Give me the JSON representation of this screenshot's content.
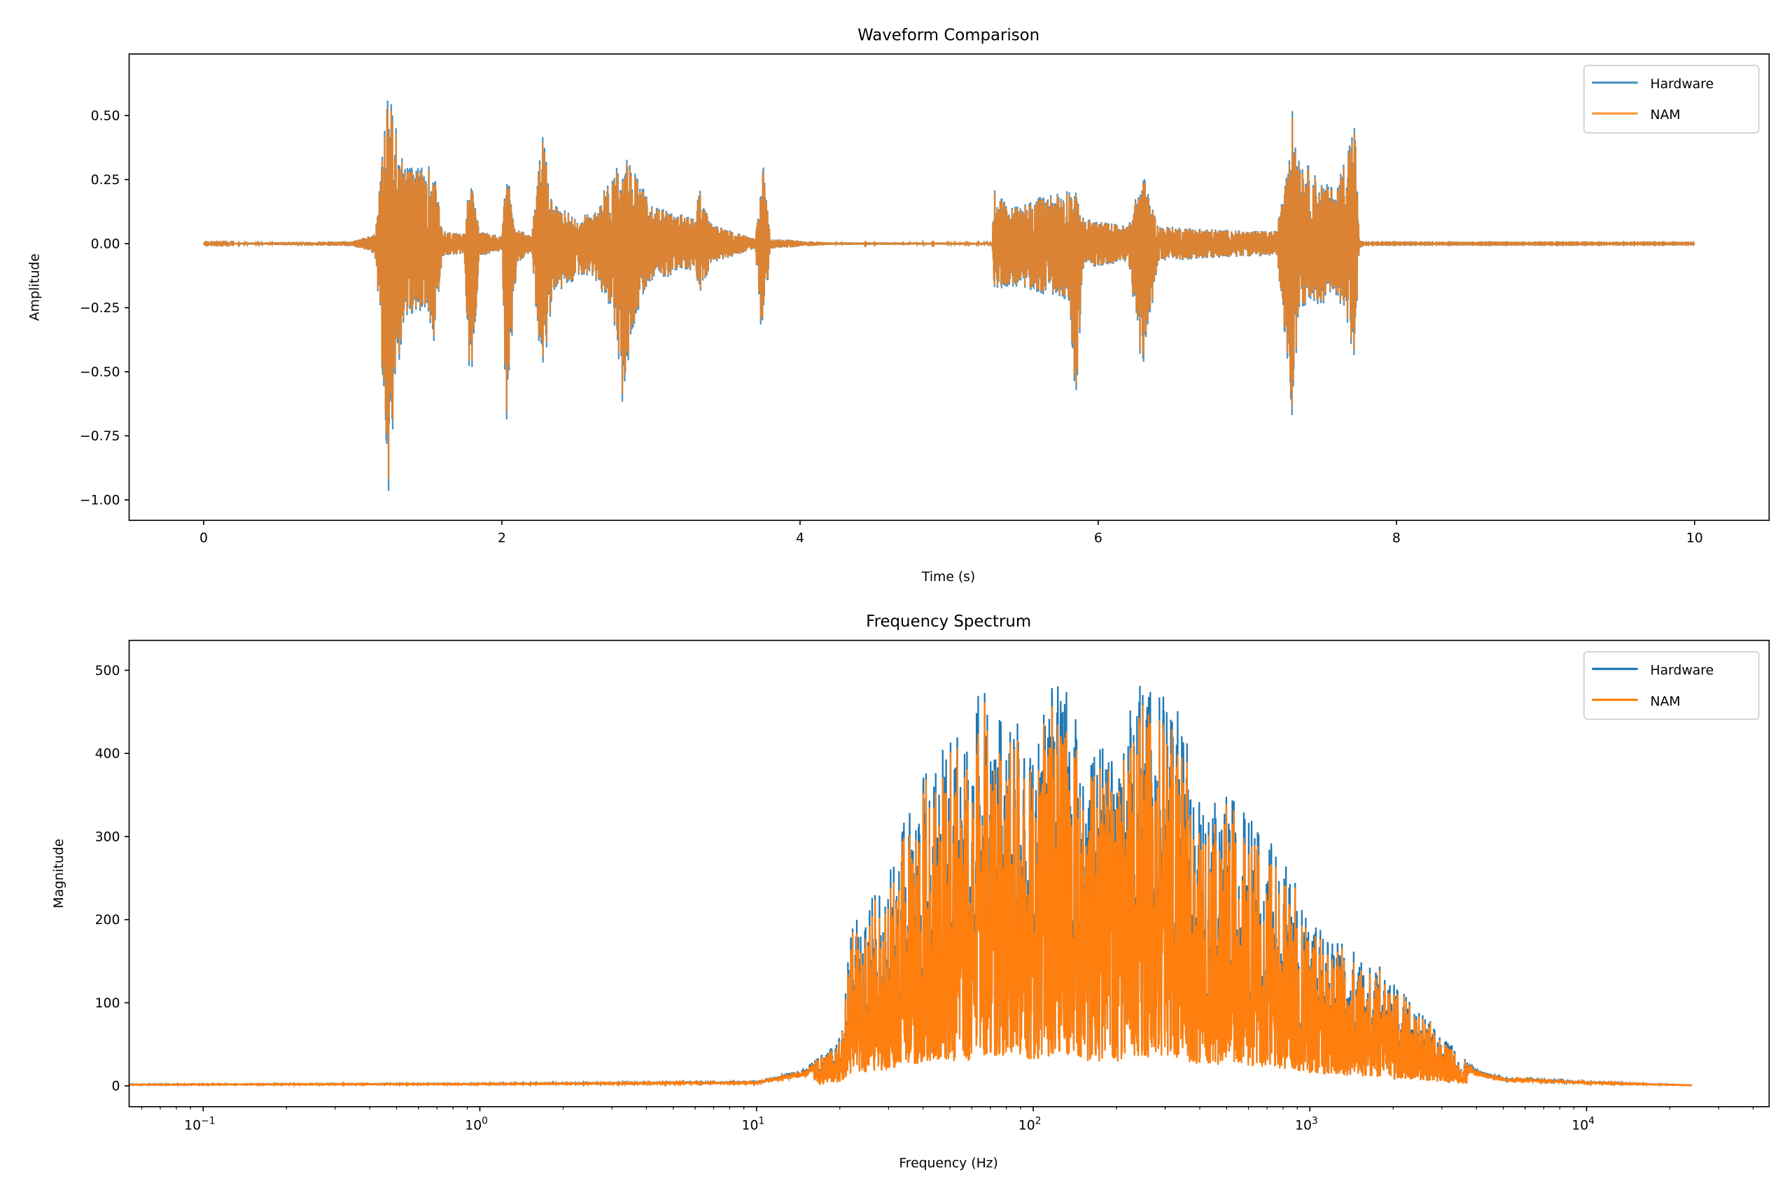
{
  "chart_data": [
    {
      "type": "line",
      "title": "Waveform Comparison",
      "xlabel": "Time (s)",
      "ylabel": "Amplitude",
      "xlim": [
        -0.5,
        10.5
      ],
      "ylim": [
        -1.08,
        0.74
      ],
      "xticks": [
        0,
        2,
        4,
        6,
        8,
        10
      ],
      "xtick_labels": [
        "0",
        "2",
        "4",
        "6",
        "8",
        "10"
      ],
      "yticks": [
        -1.0,
        -0.75,
        -0.5,
        -0.25,
        0.0,
        0.25,
        0.5
      ],
      "ytick_labels": [
        "−1.00",
        "−0.75",
        "−0.50",
        "−0.25",
        "0.00",
        "0.25",
        "0.50"
      ],
      "grid": false,
      "legend_placement": "upper-right",
      "series": [
        {
          "name": "Hardware",
          "color": "#1f77b4",
          "alpha": 0.8
        },
        {
          "name": "NAM",
          "color": "#ff7f0e",
          "alpha": 0.8
        }
      ],
      "envelope_time_max_min": [
        [
          0,
          0.002,
          -0.002
        ],
        [
          1.0,
          0.01,
          -0.01
        ],
        [
          1.15,
          0.04,
          -0.04
        ],
        [
          1.21,
          0.42,
          -0.68
        ],
        [
          1.24,
          0.65,
          -1.0
        ],
        [
          1.28,
          0.48,
          -0.62
        ],
        [
          1.35,
          0.3,
          -0.3
        ],
        [
          1.5,
          0.3,
          -0.25
        ],
        [
          1.55,
          0.33,
          -0.42
        ],
        [
          1.6,
          0.05,
          -0.05
        ],
        [
          1.75,
          0.04,
          -0.04
        ],
        [
          1.78,
          0.29,
          -0.7
        ],
        [
          1.85,
          0.05,
          -0.05
        ],
        [
          2.0,
          0.03,
          -0.03
        ],
        [
          2.03,
          0.3,
          -0.73
        ],
        [
          2.1,
          0.06,
          -0.08
        ],
        [
          2.2,
          0.03,
          -0.03
        ],
        [
          2.27,
          0.43,
          -0.57
        ],
        [
          2.35,
          0.15,
          -0.2
        ],
        [
          2.5,
          0.11,
          -0.14
        ],
        [
          2.6,
          0.12,
          -0.12
        ],
        [
          2.75,
          0.28,
          -0.28
        ],
        [
          2.8,
          0.37,
          -0.67
        ],
        [
          2.9,
          0.28,
          -0.28
        ],
        [
          3.0,
          0.15,
          -0.15
        ],
        [
          3.3,
          0.1,
          -0.1
        ],
        [
          3.32,
          0.23,
          -0.23
        ],
        [
          3.4,
          0.08,
          -0.08
        ],
        [
          3.7,
          0.02,
          -0.02
        ],
        [
          3.75,
          0.33,
          -0.44
        ],
        [
          3.8,
          0.02,
          -0.02
        ],
        [
          4.2,
          0.005,
          -0.005
        ],
        [
          5.29,
          0.004,
          -0.004
        ],
        [
          5.3,
          0.23,
          -0.18
        ],
        [
          5.4,
          0.14,
          -0.17
        ],
        [
          5.8,
          0.22,
          -0.22
        ],
        [
          5.85,
          0.2,
          -0.63
        ],
        [
          5.9,
          0.1,
          -0.1
        ],
        [
          6.2,
          0.07,
          -0.07
        ],
        [
          6.3,
          0.28,
          -0.52
        ],
        [
          6.4,
          0.07,
          -0.07
        ],
        [
          7.0,
          0.05,
          -0.05
        ],
        [
          7.2,
          0.05,
          -0.05
        ],
        [
          7.3,
          0.53,
          -0.67
        ],
        [
          7.35,
          0.35,
          -0.25
        ],
        [
          7.5,
          0.24,
          -0.24
        ],
        [
          7.6,
          0.22,
          -0.2
        ],
        [
          7.72,
          0.5,
          -0.46
        ],
        [
          7.75,
          0.02,
          -0.02
        ],
        [
          7.8,
          0.002,
          -0.002
        ],
        [
          10,
          0.002,
          -0.002
        ]
      ]
    },
    {
      "type": "line",
      "title": "Frequency Spectrum",
      "xlabel": "Frequency (Hz)",
      "ylabel": "Magnitude",
      "xscale": "log",
      "xlim": [
        0.054,
        45700
      ],
      "ylim": [
        -25,
        536
      ],
      "xticks": [
        0.1,
        1,
        10,
        100,
        1000,
        10000
      ],
      "xtick_labels": [
        [
          "10",
          "−1"
        ],
        [
          "10",
          "0"
        ],
        [
          "10",
          "1"
        ],
        [
          "10",
          "2"
        ],
        [
          "10",
          "3"
        ],
        [
          "10",
          "4"
        ]
      ],
      "yticks": [
        0,
        100,
        200,
        300,
        400,
        500
      ],
      "ytick_labels": [
        "0",
        "100",
        "200",
        "300",
        "400",
        "500"
      ],
      "grid": false,
      "legend_placement": "upper-right",
      "series": [
        {
          "name": "Hardware",
          "color": "#1f77b4"
        },
        {
          "name": "NAM",
          "color": "#ff7f0e"
        }
      ],
      "peak_envelope_freq_mag": [
        [
          0.054,
          2
        ],
        [
          1,
          3
        ],
        [
          10,
          5
        ],
        [
          15,
          20
        ],
        [
          20,
          60
        ],
        [
          22,
          200
        ],
        [
          30,
          250
        ],
        [
          32,
          300
        ],
        [
          35,
          335
        ],
        [
          46,
          408
        ],
        [
          60,
          430
        ],
        [
          65,
          510
        ],
        [
          75,
          460
        ],
        [
          100,
          420
        ],
        [
          125,
          505
        ],
        [
          150,
          420
        ],
        [
          200,
          400
        ],
        [
          240,
          485
        ],
        [
          330,
          465
        ],
        [
          400,
          350
        ],
        [
          500,
          350
        ],
        [
          700,
          310
        ],
        [
          900,
          255
        ],
        [
          1000,
          200
        ],
        [
          1500,
          160
        ],
        [
          1800,
          145
        ],
        [
          2500,
          95
        ],
        [
          3000,
          60
        ],
        [
          3500,
          40
        ],
        [
          4000,
          20
        ],
        [
          5000,
          10
        ],
        [
          10000,
          5
        ],
        [
          24000,
          1
        ]
      ]
    }
  ]
}
